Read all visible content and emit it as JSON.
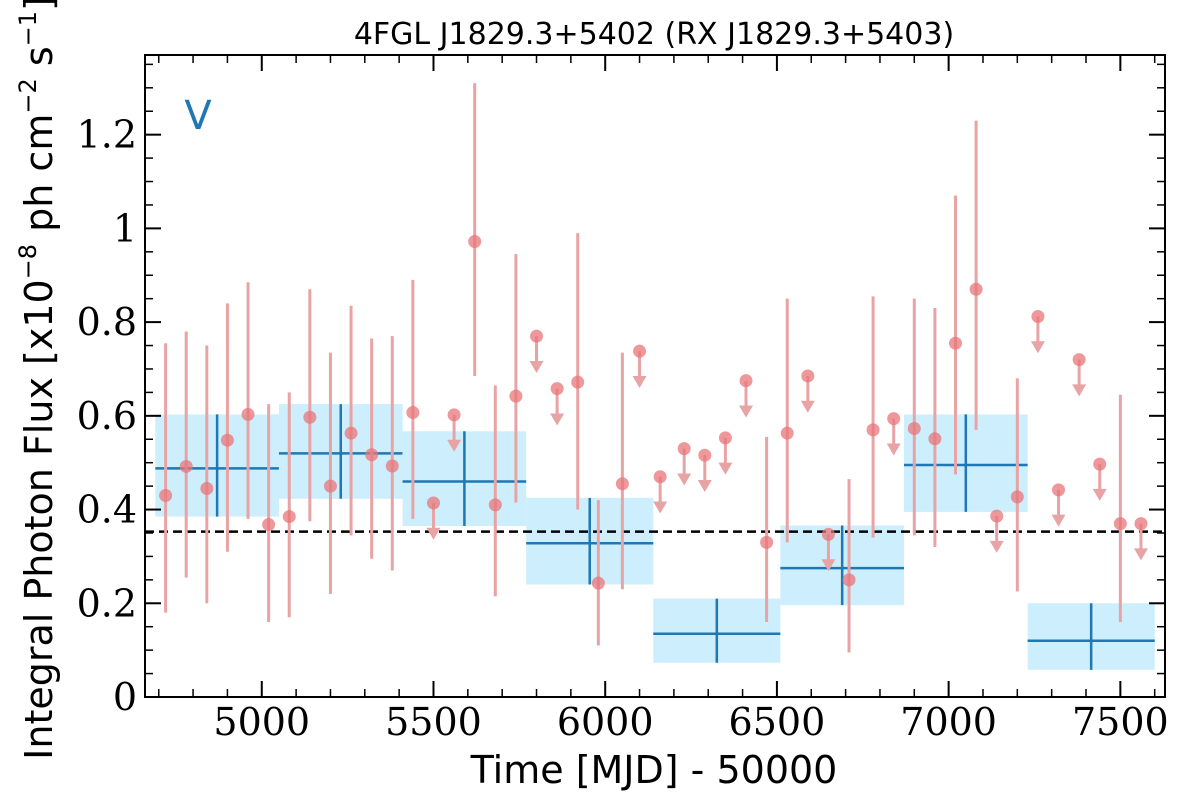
{
  "chart_data": {
    "type": "scatter",
    "title": "4FGL J1829.3+5402 (RX J1829.3+5403)",
    "panel_label": "V",
    "xlabel": "Time [MJD] - 50000",
    "ylabel_parts": {
      "prefix": "Integral Photon Flux [x10",
      "exp1": "−8",
      "mid": " ph cm",
      "exp2": "−2",
      "s": " s",
      "exp3": "−1",
      "suffix": "]"
    },
    "xlim": [
      4660,
      7630
    ],
    "ylim": [
      0,
      1.37
    ],
    "x_ticks": [
      {
        "value": 5000,
        "label": "5000"
      },
      {
        "value": 5500,
        "label": "5500"
      },
      {
        "value": 6000,
        "label": "6000"
      },
      {
        "value": 6500,
        "label": "6500"
      },
      {
        "value": 7000,
        "label": "7000"
      },
      {
        "value": 7500,
        "label": "7500"
      }
    ],
    "y_ticks": [
      {
        "value": 0,
        "label": "0"
      },
      {
        "value": 0.2,
        "label": "0.2"
      },
      {
        "value": 0.4,
        "label": "0.4"
      },
      {
        "value": 0.6,
        "label": "0.6"
      },
      {
        "value": 0.8,
        "label": "0.8"
      },
      {
        "value": 1.0,
        "label": "1"
      },
      {
        "value": 1.2,
        "label": "1.2"
      }
    ],
    "mean_flux": 0.353,
    "colors": {
      "points": "#e8767a",
      "errorbars": "#e8a3a5",
      "bins": "#1f77b4",
      "bin_boxes": "#cdeefc",
      "mean_line": "#000000"
    },
    "detections": [
      {
        "x": 4720,
        "y": 0.43,
        "lo": 0.18,
        "hi": 0.755
      },
      {
        "x": 4780,
        "y": 0.492,
        "lo": 0.255,
        "hi": 0.78
      },
      {
        "x": 4840,
        "y": 0.445,
        "lo": 0.2,
        "hi": 0.75
      },
      {
        "x": 4900,
        "y": 0.548,
        "lo": 0.31,
        "hi": 0.84
      },
      {
        "x": 4960,
        "y": 0.603,
        "lo": 0.38,
        "hi": 0.885
      },
      {
        "x": 5020,
        "y": 0.368,
        "lo": 0.16,
        "hi": 0.625
      },
      {
        "x": 5080,
        "y": 0.385,
        "lo": 0.17,
        "hi": 0.65
      },
      {
        "x": 5140,
        "y": 0.597,
        "lo": 0.375,
        "hi": 0.87
      },
      {
        "x": 5200,
        "y": 0.45,
        "lo": 0.22,
        "hi": 0.735
      },
      {
        "x": 5260,
        "y": 0.563,
        "lo": 0.345,
        "hi": 0.835
      },
      {
        "x": 5320,
        "y": 0.517,
        "lo": 0.295,
        "hi": 0.765
      },
      {
        "x": 5380,
        "y": 0.493,
        "lo": 0.27,
        "hi": 0.77
      },
      {
        "x": 5440,
        "y": 0.607,
        "lo": 0.38,
        "hi": 0.89
      },
      {
        "x": 5620,
        "y": 0.972,
        "lo": 0.685,
        "hi": 1.31
      },
      {
        "x": 5680,
        "y": 0.41,
        "lo": 0.215,
        "hi": 0.665
      },
      {
        "x": 5740,
        "y": 0.642,
        "lo": 0.415,
        "hi": 0.945
      },
      {
        "x": 5920,
        "y": 0.672,
        "lo": 0.4,
        "hi": 0.99
      },
      {
        "x": 5980,
        "y": 0.243,
        "lo": 0.11,
        "hi": 0.42
      },
      {
        "x": 6050,
        "y": 0.455,
        "lo": 0.23,
        "hi": 0.735
      },
      {
        "x": 6470,
        "y": 0.33,
        "lo": 0.16,
        "hi": 0.555
      },
      {
        "x": 6530,
        "y": 0.563,
        "lo": 0.33,
        "hi": 0.85
      },
      {
        "x": 6710,
        "y": 0.25,
        "lo": 0.095,
        "hi": 0.465
      },
      {
        "x": 6780,
        "y": 0.57,
        "lo": 0.34,
        "hi": 0.855
      },
      {
        "x": 6900,
        "y": 0.573,
        "lo": 0.345,
        "hi": 0.85
      },
      {
        "x": 6960,
        "y": 0.551,
        "lo": 0.32,
        "hi": 0.83
      },
      {
        "x": 7020,
        "y": 0.755,
        "lo": 0.475,
        "hi": 1.07
      },
      {
        "x": 7080,
        "y": 0.87,
        "lo": 0.57,
        "hi": 1.23
      },
      {
        "x": 7200,
        "y": 0.427,
        "lo": 0.225,
        "hi": 0.68
      },
      {
        "x": 7500,
        "y": 0.37,
        "lo": 0.16,
        "hi": 0.645
      }
    ],
    "upper_limits": [
      {
        "x": 5500,
        "y": 0.414
      },
      {
        "x": 5560,
        "y": 0.602
      },
      {
        "x": 5800,
        "y": 0.77
      },
      {
        "x": 5860,
        "y": 0.658
      },
      {
        "x": 6100,
        "y": 0.738
      },
      {
        "x": 6160,
        "y": 0.47
      },
      {
        "x": 6230,
        "y": 0.53
      },
      {
        "x": 6290,
        "y": 0.516
      },
      {
        "x": 6350,
        "y": 0.553
      },
      {
        "x": 6410,
        "y": 0.675
      },
      {
        "x": 6590,
        "y": 0.685
      },
      {
        "x": 6650,
        "y": 0.347
      },
      {
        "x": 6840,
        "y": 0.594
      },
      {
        "x": 7140,
        "y": 0.386
      },
      {
        "x": 7260,
        "y": 0.812
      },
      {
        "x": 7320,
        "y": 0.442
      },
      {
        "x": 7380,
        "y": 0.72
      },
      {
        "x": 7440,
        "y": 0.497
      },
      {
        "x": 7560,
        "y": 0.37
      }
    ],
    "bins": [
      {
        "x0": 4690,
        "x1": 5050,
        "y": 0.488,
        "lo": 0.385,
        "hi": 0.603
      },
      {
        "x0": 5050,
        "x1": 5410,
        "y": 0.52,
        "lo": 0.423,
        "hi": 0.625
      },
      {
        "x0": 5410,
        "x1": 5770,
        "y": 0.46,
        "lo": 0.365,
        "hi": 0.567
      },
      {
        "x0": 5770,
        "x1": 6140,
        "y": 0.328,
        "lo": 0.24,
        "hi": 0.425
      },
      {
        "x0": 6140,
        "x1": 6510,
        "y": 0.135,
        "lo": 0.073,
        "hi": 0.21
      },
      {
        "x0": 6510,
        "x1": 6870,
        "y": 0.275,
        "lo": 0.196,
        "hi": 0.366
      },
      {
        "x0": 6870,
        "x1": 7230,
        "y": 0.495,
        "lo": 0.395,
        "hi": 0.603
      },
      {
        "x0": 7230,
        "x1": 7600,
        "y": 0.12,
        "lo": 0.058,
        "hi": 0.2
      }
    ]
  }
}
